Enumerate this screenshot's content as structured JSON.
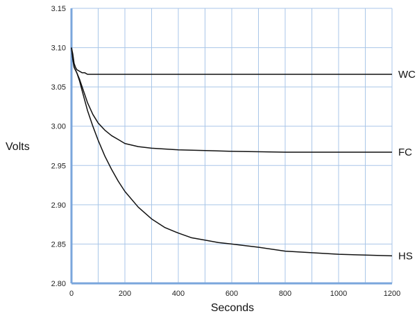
{
  "chart_data": {
    "type": "line",
    "xlabel": "Seconds",
    "ylabel": "Volts",
    "xlim": [
      0,
      1200
    ],
    "ylim": [
      2.8,
      3.15
    ],
    "x_ticks": [
      0,
      200,
      400,
      600,
      800,
      1000,
      1200
    ],
    "y_ticks": [
      "2.80",
      "2.85",
      "2.90",
      "2.95",
      "3.00",
      "3.05",
      "3.10",
      "3.15"
    ],
    "grid": true,
    "grid_step_x": 100,
    "colors": {
      "grid": "#a9c6e8",
      "axis": "#7aa6dc",
      "line": "#111111",
      "frame": "#a9c6e8"
    },
    "series": [
      {
        "name": "WC",
        "points": [
          [
            0,
            3.1
          ],
          [
            5,
            3.092
          ],
          [
            10,
            3.08
          ],
          [
            15,
            3.075
          ],
          [
            20,
            3.072
          ],
          [
            30,
            3.07
          ],
          [
            40,
            3.068
          ],
          [
            50,
            3.068
          ],
          [
            60,
            3.066
          ],
          [
            100,
            3.066
          ],
          [
            200,
            3.066
          ],
          [
            400,
            3.066
          ],
          [
            600,
            3.066
          ],
          [
            800,
            3.066
          ],
          [
            1000,
            3.066
          ],
          [
            1200,
            3.066
          ]
        ]
      },
      {
        "name": "FC",
        "points": [
          [
            0,
            3.1
          ],
          [
            5,
            3.085
          ],
          [
            10,
            3.075
          ],
          [
            20,
            3.068
          ],
          [
            30,
            3.06
          ],
          [
            40,
            3.05
          ],
          [
            60,
            3.03
          ],
          [
            80,
            3.015
          ],
          [
            100,
            3.004
          ],
          [
            125,
            2.995
          ],
          [
            150,
            2.988
          ],
          [
            175,
            2.983
          ],
          [
            200,
            2.978
          ],
          [
            250,
            2.974
          ],
          [
            300,
            2.972
          ],
          [
            400,
            2.97
          ],
          [
            500,
            2.969
          ],
          [
            600,
            2.968
          ],
          [
            800,
            2.967
          ],
          [
            1000,
            2.967
          ],
          [
            1200,
            2.967
          ]
        ]
      },
      {
        "name": "HS",
        "points": [
          [
            0,
            3.1
          ],
          [
            5,
            3.085
          ],
          [
            10,
            3.075
          ],
          [
            20,
            3.068
          ],
          [
            30,
            3.058
          ],
          [
            40,
            3.045
          ],
          [
            60,
            3.02
          ],
          [
            80,
            3.0
          ],
          [
            100,
            2.982
          ],
          [
            125,
            2.962
          ],
          [
            150,
            2.945
          ],
          [
            175,
            2.93
          ],
          [
            200,
            2.917
          ],
          [
            250,
            2.897
          ],
          [
            300,
            2.882
          ],
          [
            350,
            2.871
          ],
          [
            400,
            2.864
          ],
          [
            450,
            2.858
          ],
          [
            500,
            2.855
          ],
          [
            550,
            2.852
          ],
          [
            600,
            2.85
          ],
          [
            700,
            2.846
          ],
          [
            800,
            2.841
          ],
          [
            900,
            2.839
          ],
          [
            1000,
            2.837
          ],
          [
            1100,
            2.836
          ],
          [
            1200,
            2.835
          ]
        ]
      }
    ]
  }
}
